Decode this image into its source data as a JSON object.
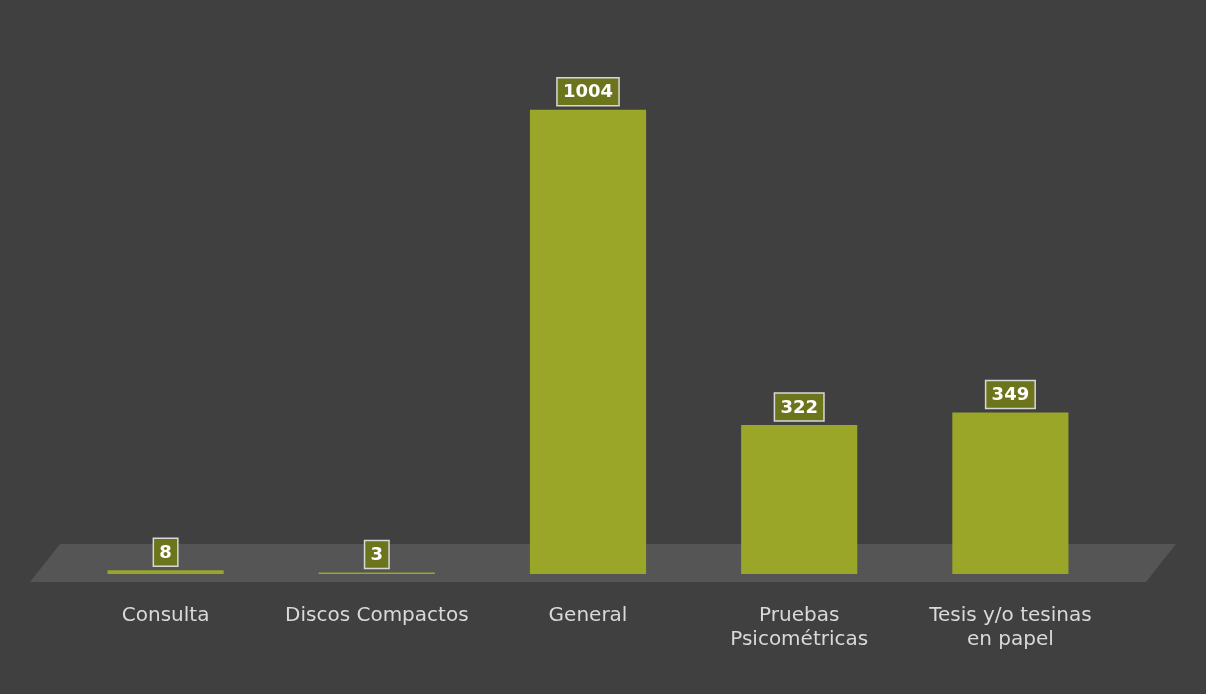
{
  "chart_data": {
    "type": "bar",
    "categories": [
      "Consulta",
      "Discos Compactos",
      "General",
      "Pruebas Psicométricas",
      "Tesis y/o tesinas en papel"
    ],
    "values": [
      8,
      3,
      1004,
      322,
      349
    ],
    "color": "#9aa628",
    "data_labels": true,
    "grid": false,
    "legend": false
  }
}
